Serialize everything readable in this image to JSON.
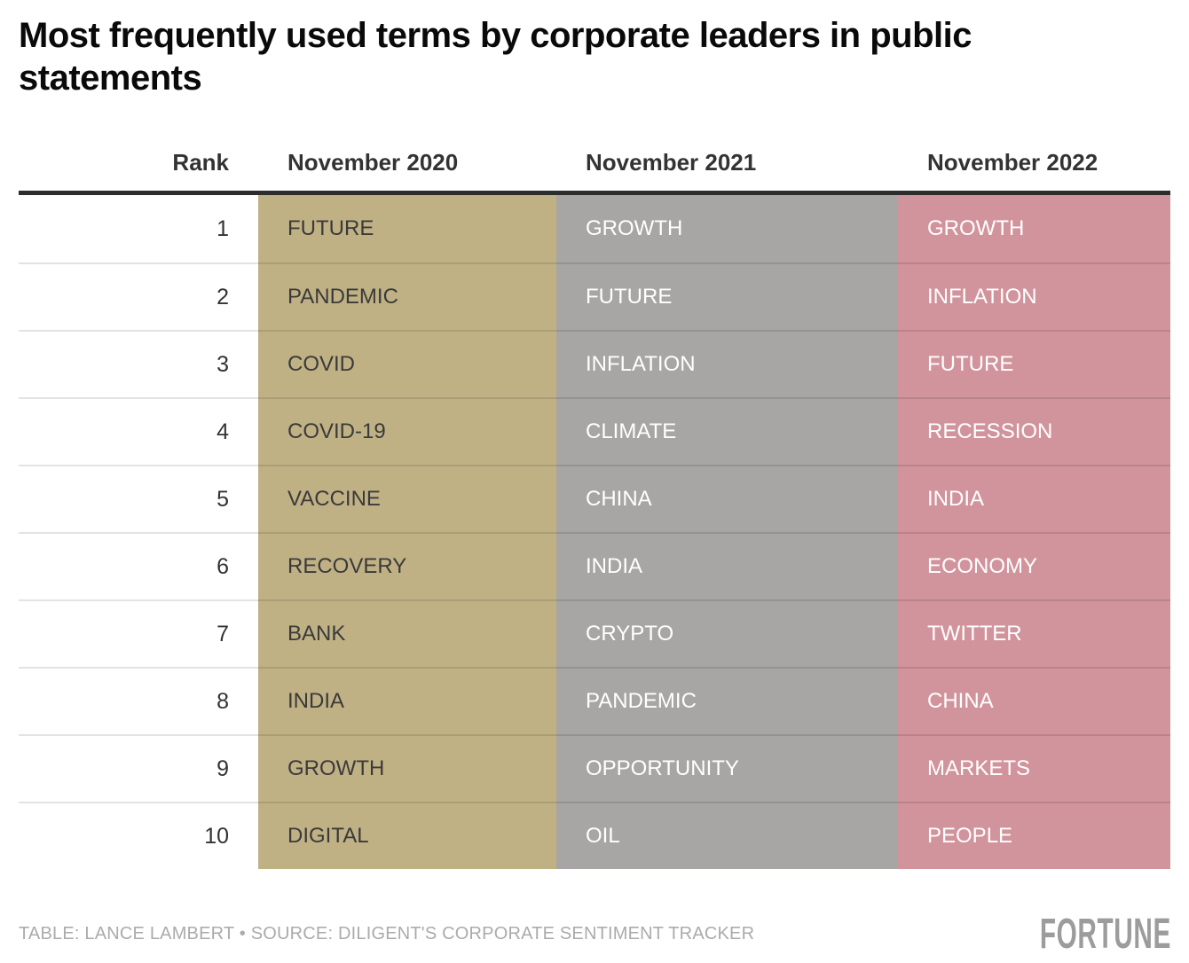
{
  "title": {
    "lines": [
      "Most frequently used terms by corporate leaders in public",
      "statements"
    ]
  },
  "table": {
    "headers": {
      "rank": "Rank",
      "col2020": "November 2020",
      "col2021": "November 2021",
      "col2022": "November 2022"
    },
    "rows": [
      {
        "rank": "1",
        "y2020": "FUTURE",
        "y2021": "GROWTH",
        "y2022": "GROWTH"
      },
      {
        "rank": "2",
        "y2020": "PANDEMIC",
        "y2021": "FUTURE",
        "y2022": "INFLATION"
      },
      {
        "rank": "3",
        "y2020": "COVID",
        "y2021": "INFLATION",
        "y2022": "FUTURE"
      },
      {
        "rank": "4",
        "y2020": "COVID-19",
        "y2021": "CLIMATE",
        "y2022": "RECESSION"
      },
      {
        "rank": "5",
        "y2020": "VACCINE",
        "y2021": "CHINA",
        "y2022": "INDIA"
      },
      {
        "rank": "6",
        "y2020": "RECOVERY",
        "y2021": "INDIA",
        "y2022": "ECONOMY"
      },
      {
        "rank": "7",
        "y2020": "BANK",
        "y2021": "CRYPTO",
        "y2022": "TWITTER"
      },
      {
        "rank": "8",
        "y2020": "INDIA",
        "y2021": "PANDEMIC",
        "y2022": "CHINA"
      },
      {
        "rank": "9",
        "y2020": "GROWTH",
        "y2021": "OPPORTUNITY",
        "y2022": "MARKETS"
      },
      {
        "rank": "10",
        "y2020": "DIGITAL",
        "y2021": "OIL",
        "y2022": "PEOPLE"
      }
    ]
  },
  "footer": {
    "credit": "TABLE: LANCE LAMBERT • SOURCE: DILIGENT'S CORPORATE SENTIMENT TRACKER",
    "logo": "FORTUNE"
  },
  "colors": {
    "col2020_bg": "#c0b185",
    "col2021_bg": "#a7a6a4",
    "col2022_bg": "#d1949c",
    "header_rule": "#2d2d2d",
    "header_text": "#333333",
    "dark_cell_text": "#3a3a3a",
    "light_cell_text": "#ffffff",
    "credit_text": "#ababab",
    "logo_text": "#9c9c9c"
  },
  "chart_data": {
    "type": "table",
    "title": "Most frequently used terms by corporate leaders in public statements",
    "columns": [
      "Rank",
      "November 2020",
      "November 2021",
      "November 2022"
    ],
    "rows": [
      [
        "1",
        "FUTURE",
        "GROWTH",
        "GROWTH"
      ],
      [
        "2",
        "PANDEMIC",
        "FUTURE",
        "INFLATION"
      ],
      [
        "3",
        "COVID",
        "INFLATION",
        "FUTURE"
      ],
      [
        "4",
        "COVID-19",
        "CLIMATE",
        "RECESSION"
      ],
      [
        "5",
        "VACCINE",
        "CHINA",
        "INDIA"
      ],
      [
        "6",
        "RECOVERY",
        "INDIA",
        "ECONOMY"
      ],
      [
        "7",
        "BANK",
        "CRYPTO",
        "TWITTER"
      ],
      [
        "8",
        "INDIA",
        "PANDEMIC",
        "CHINA"
      ],
      [
        "9",
        "GROWTH",
        "OPPORTUNITY",
        "MARKETS"
      ],
      [
        "10",
        "DIGITAL",
        "OIL",
        "PEOPLE"
      ]
    ],
    "source": "TABLE: LANCE LAMBERT • SOURCE: DILIGENT'S CORPORATE SENTIMENT TRACKER"
  }
}
